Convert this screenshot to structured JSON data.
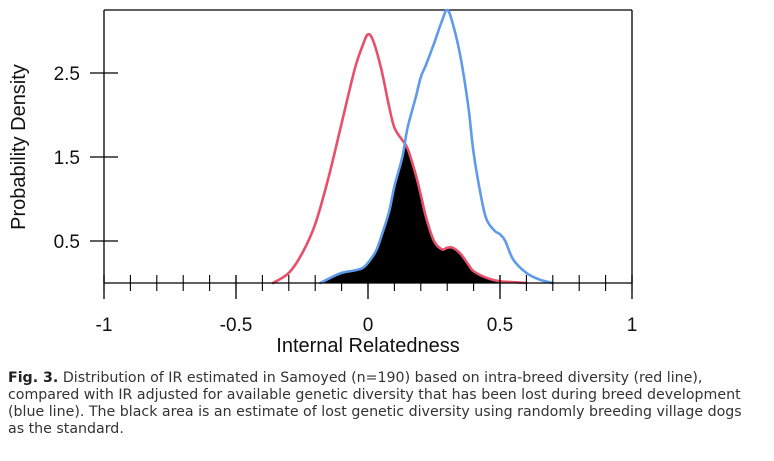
{
  "chart_data": {
    "type": "area",
    "xlabel": "Internal Relatedness",
    "ylabel": "Probability Density",
    "xlim": [
      -1,
      1
    ],
    "ylim": [
      0,
      3.25
    ],
    "x_ticks": [
      -1,
      -0.5,
      0,
      0.5,
      1
    ],
    "x_tick_labels": [
      "-1",
      "-0.5",
      "0",
      "0.5",
      "1"
    ],
    "y_ticks": [
      0.5,
      1.5,
      2.5
    ],
    "y_tick_labels": [
      "0.5",
      "1.5",
      "2.5"
    ],
    "grid": false,
    "series": [
      {
        "color": "#e8506a",
        "x": [
          -0.36,
          -0.3,
          -0.25,
          -0.2,
          -0.15,
          -0.1,
          -0.05,
          -0.02,
          0.0,
          0.02,
          0.05,
          0.08,
          0.1,
          0.13,
          0.15,
          0.18,
          0.2,
          0.22,
          0.25,
          0.28,
          0.3,
          0.32,
          0.35,
          0.38,
          0.4,
          0.45,
          0.5,
          0.55,
          0.6
        ],
        "y": [
          0.0,
          0.12,
          0.35,
          0.7,
          1.25,
          1.9,
          2.55,
          2.83,
          2.96,
          2.88,
          2.55,
          2.1,
          1.85,
          1.7,
          1.6,
          1.3,
          1.05,
          0.78,
          0.5,
          0.4,
          0.42,
          0.42,
          0.35,
          0.22,
          0.14,
          0.06,
          0.02,
          0.01,
          0.0
        ]
      },
      {
        "color": "#5e9bea",
        "x": [
          -0.18,
          -0.15,
          -0.1,
          -0.05,
          -0.02,
          0.0,
          0.03,
          0.05,
          0.08,
          0.1,
          0.13,
          0.15,
          0.18,
          0.2,
          0.22,
          0.25,
          0.28,
          0.3,
          0.32,
          0.35,
          0.38,
          0.4,
          0.43,
          0.45,
          0.48,
          0.5,
          0.52,
          0.55,
          0.6,
          0.65,
          0.7
        ],
        "y": [
          0.0,
          0.05,
          0.12,
          0.15,
          0.18,
          0.24,
          0.38,
          0.55,
          0.85,
          1.15,
          1.5,
          1.85,
          2.2,
          2.45,
          2.6,
          2.85,
          3.12,
          3.25,
          3.1,
          2.7,
          2.1,
          1.55,
          1.0,
          0.75,
          0.62,
          0.58,
          0.5,
          0.28,
          0.12,
          0.04,
          0.0
        ]
      }
    ],
    "shaded_area": "minimum of red and blue curves",
    "shaded_color": "#000000"
  },
  "caption": {
    "label": "Fig. 3.",
    "text": "Distribution of IR estimated in Samoyed (n=190) based on intra-breed diversity (red line), compared with IR adjusted for available genetic diversity that has been lost during breed development (blue line). The black area is an estimate of lost genetic diversity using randomly breeding village dogs as the standard."
  }
}
